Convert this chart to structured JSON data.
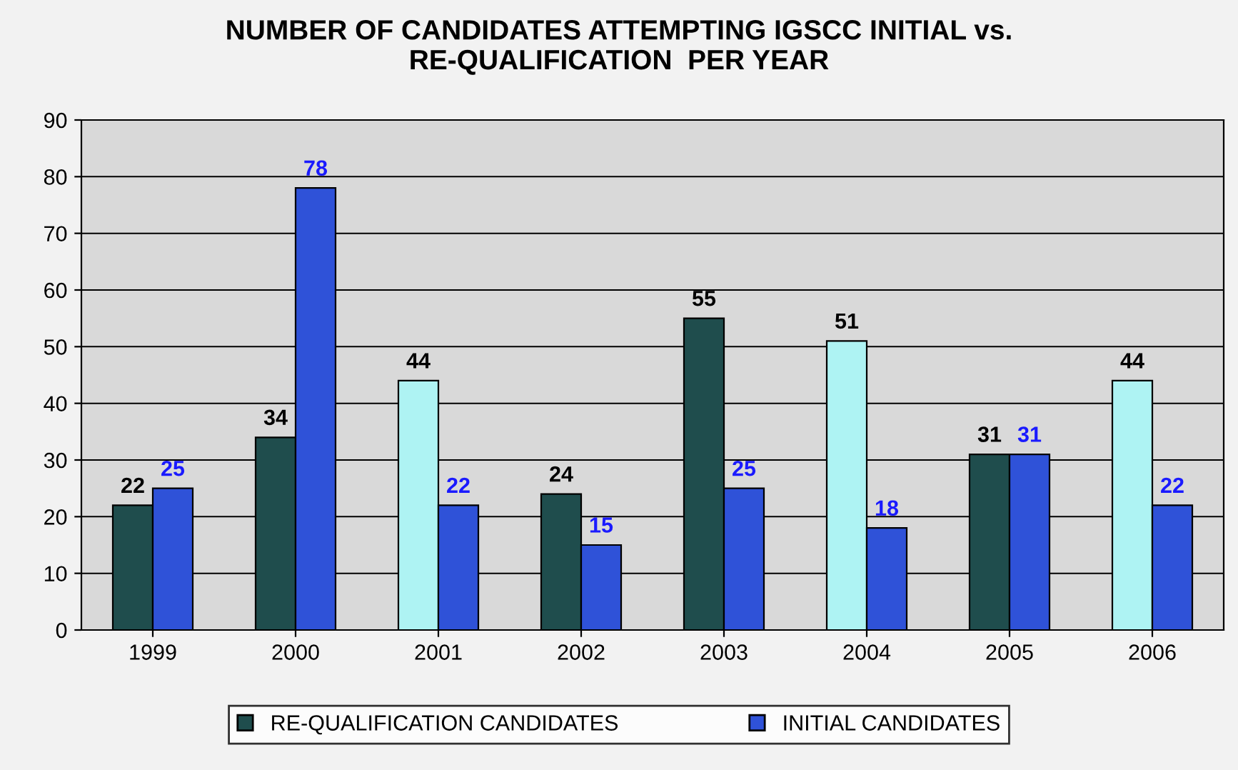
{
  "chart_data": {
    "type": "bar",
    "title": "NUMBER OF CANDIDATES ATTEMPTING IGSCC INITIAL vs.\nRE-QUALIFICATION  PER YEAR",
    "categories": [
      "1999",
      "2000",
      "2001",
      "2002",
      "2003",
      "2004",
      "2005",
      "2006"
    ],
    "series": [
      {
        "name": "RE-QUALIFICATION CANDIDATES",
        "color": "#1f4d4d",
        "colors": [
          "#1f4d4d",
          "#1f4d4d",
          "#aef3f3",
          "#1f4d4d",
          "#1f4d4d",
          "#aef3f3",
          "#1f4d4d",
          "#aef3f3"
        ],
        "values": [
          22,
          34,
          44,
          24,
          55,
          51,
          31,
          44
        ]
      },
      {
        "name": "INITIAL CANDIDATES",
        "color": "#2f52d8",
        "values": [
          25,
          78,
          22,
          15,
          25,
          18,
          31,
          22
        ]
      }
    ],
    "ylim": [
      0,
      90
    ],
    "yticks": [
      0,
      10,
      20,
      30,
      40,
      50,
      60,
      70,
      80,
      90
    ],
    "grid": "y",
    "legend": "bottom",
    "data_labels": true
  }
}
